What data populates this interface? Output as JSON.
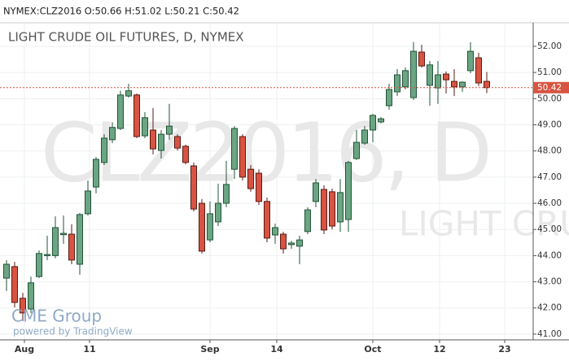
{
  "chart_data": {
    "type": "candlestick",
    "header": "NYMEX:CLZ2016 O:50.66 H:51.02 L:50.21 C:50.42",
    "title": "LIGHT CRUDE OIL FUTURES, D, NYMEX",
    "watermark": "CLZ2016, D",
    "watermark_sub": "LIGHT CRUDE",
    "logo": "CME Group",
    "powered_by": "powered by TradingView",
    "up_color": "#6ba583",
    "down_color": "#d75442",
    "open": [
      43.14,
      43.58,
      42.37,
      41.96,
      43.2,
      44.0,
      44.0,
      44.8,
      44.82,
      43.67,
      45.6,
      46.62,
      47.56,
      48.43,
      48.86,
      50.1,
      50.14,
      48.58,
      48.8,
      48.02,
      48.64,
      48.55,
      48.18,
      47.43,
      46.0,
      44.6,
      45.29,
      46.0,
      47.3,
      48.55,
      47.3,
      47.15,
      46.07,
      44.79,
      44.82,
      44.42,
      44.36,
      44.92,
      46.07,
      46.53,
      46.44,
      45.29,
      45.38,
      47.71,
      48.3,
      48.8,
      49.11,
      49.73,
      50.26,
      50.45,
      50.04,
      51.78,
      50.51,
      50.41,
      50.94,
      50.66,
      50.45,
      51.07,
      51.56,
      50.66
    ],
    "high": [
      43.83,
      43.76,
      42.58,
      43.2,
      44.2,
      44.76,
      45.5,
      45.53,
      45.2,
      45.63,
      46.87,
      47.77,
      48.64,
      49.1,
      50.3,
      50.57,
      50.2,
      49.48,
      49.64,
      48.8,
      49.8,
      48.64,
      48.24,
      47.56,
      46.16,
      46.07,
      46.75,
      47.62,
      48.95,
      48.64,
      47.46,
      47.3,
      46.22,
      45.22,
      44.91,
      44.57,
      44.76,
      45.85,
      46.93,
      46.69,
      46.56,
      46.93,
      47.62,
      48.8,
      48.95,
      49.42,
      49.3,
      50.57,
      51.13,
      51.19,
      52.16,
      52.06,
      51.44,
      51.44,
      51.04,
      51.13,
      50.66,
      52.16,
      51.75,
      51.02
    ],
    "low": [
      42.65,
      42.02,
      41.5,
      41.8,
      43.14,
      43.83,
      43.9,
      44.45,
      43.67,
      43.27,
      45.53,
      46.38,
      47.46,
      48.3,
      48.8,
      50.04,
      48.49,
      48.49,
      47.87,
      47.71,
      48.43,
      48.02,
      47.49,
      45.69,
      44.08,
      44.51,
      45.13,
      45.85,
      46.93,
      46.87,
      46.44,
      45.94,
      44.51,
      44.45,
      44.08,
      44.26,
      43.67,
      44.82,
      45.85,
      44.82,
      45.0,
      44.91,
      44.91,
      47.65,
      48.24,
      48.33,
      49.05,
      49.58,
      50.1,
      50.35,
      49.95,
      51.19,
      49.73,
      49.8,
      50.2,
      50.1,
      50.26,
      50.97,
      50.48,
      50.21
    ],
    "close": [
      43.67,
      42.21,
      41.81,
      42.96,
      44.08,
      44.04,
      45.07,
      44.85,
      43.83,
      45.57,
      46.47,
      47.68,
      48.49,
      48.9,
      50.14,
      50.3,
      48.55,
      49.27,
      48.08,
      48.64,
      48.95,
      48.11,
      47.56,
      45.78,
      44.17,
      45.6,
      46.0,
      46.72,
      48.86,
      47.0,
      46.56,
      46.07,
      44.67,
      45.07,
      44.26,
      44.48,
      44.6,
      45.75,
      46.78,
      44.98,
      45.13,
      46.41,
      47.56,
      48.33,
      48.8,
      49.36,
      49.23,
      50.35,
      50.91,
      51.07,
      51.81,
      51.25,
      51.29,
      50.91,
      50.72,
      50.45,
      50.63,
      51.81,
      50.6,
      50.42
    ],
    "xlim": [
      -0.8,
      64.7
    ],
    "xticks": [
      {
        "value": 2.2,
        "label": "Aug"
      },
      {
        "value": 10.2,
        "label": "11"
      },
      {
        "value": 25,
        "label": "Sep"
      },
      {
        "value": 33.2,
        "label": "14"
      },
      {
        "value": 45,
        "label": "Oct"
      },
      {
        "value": 53.2,
        "label": "12"
      },
      {
        "value": 61.2,
        "label": "23"
      }
    ],
    "ylim": [
      40.78,
      52.9
    ],
    "yticks": [
      {
        "value": 41,
        "label": "41.00"
      },
      {
        "value": 42,
        "label": "42.00"
      },
      {
        "value": 43,
        "label": "43.00"
      },
      {
        "value": 44,
        "label": "44.00"
      },
      {
        "value": 45,
        "label": "45.00"
      },
      {
        "value": 46,
        "label": "46.00"
      },
      {
        "value": 47,
        "label": "47.00"
      },
      {
        "value": 48,
        "label": "48.00"
      },
      {
        "value": 49,
        "label": "49.00"
      },
      {
        "value": 50,
        "label": "50.00"
      },
      {
        "value": 51,
        "label": "51.00"
      },
      {
        "value": 52,
        "label": "52.00"
      }
    ],
    "grid": true
  }
}
